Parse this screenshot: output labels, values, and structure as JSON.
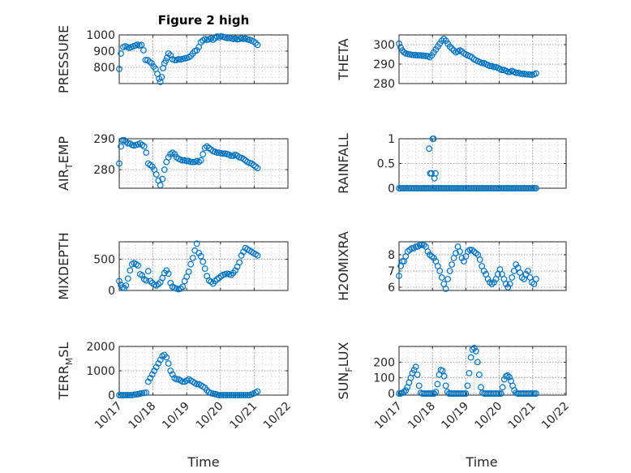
{
  "figure": {
    "title": "Figure 2 high",
    "xlabel": "Time",
    "date_ticks": [
      "10/17",
      "10/18",
      "10/19",
      "10/20",
      "10/21",
      "10/22"
    ]
  },
  "colors": {
    "marker": "#0072BD",
    "axes": "#262626",
    "grid": "#b0b0b0"
  },
  "chart_data": [
    {
      "type": "scatter",
      "ylabel": "PRESSURE",
      "xlim": [
        "10/17",
        "10/22"
      ],
      "ylim": [
        700,
        1000
      ],
      "yticks": [
        800,
        900,
        1000
      ],
      "grid": true,
      "x": [
        0.0,
        0.05,
        0.12,
        0.18,
        0.24,
        0.3,
        0.36,
        0.42,
        0.48,
        0.54,
        0.6,
        0.66,
        0.72,
        0.78,
        0.84,
        0.9,
        0.96,
        1.02,
        1.08,
        1.13,
        1.18,
        1.22,
        1.26,
        1.3,
        1.34,
        1.38,
        1.42,
        1.46,
        1.52,
        1.58,
        1.64,
        1.7,
        1.76,
        1.82,
        1.88,
        1.94,
        2.0,
        2.06,
        2.12,
        2.18,
        2.24,
        2.3,
        2.36,
        2.42,
        2.48,
        2.54,
        2.6,
        2.66,
        2.72,
        2.78,
        2.84,
        2.9,
        2.96,
        3.02,
        3.08,
        3.14,
        3.2,
        3.26,
        3.32,
        3.38,
        3.44,
        3.5,
        3.56,
        3.62,
        3.68,
        3.74,
        3.8,
        3.86,
        3.92,
        3.98,
        4.04,
        4.1
      ],
      "y": [
        790,
        885,
        925,
        930,
        925,
        920,
        925,
        930,
        935,
        940,
        935,
        938,
        905,
        845,
        845,
        835,
        825,
        805,
        790,
        760,
        730,
        710,
        740,
        795,
        825,
        840,
        860,
        885,
        875,
        850,
        845,
        845,
        850,
        848,
        852,
        855,
        858,
        862,
        870,
        885,
        900,
        905,
        925,
        955,
        965,
        975,
        970,
        972,
        978,
        970,
        980,
        990,
        985,
        992,
        988,
        985,
        980,
        982,
        978,
        975,
        978,
        972,
        975,
        980,
        975,
        978,
        972,
        970,
        965,
        960,
        950,
        938
      ]
    },
    {
      "type": "scatter",
      "ylabel": "THETA",
      "xlim": [
        "10/17",
        "10/22"
      ],
      "ylim": [
        280,
        305
      ],
      "yticks": [
        280,
        290,
        300
      ],
      "grid": true,
      "x": [
        0.0,
        0.05,
        0.1,
        0.15,
        0.2,
        0.26,
        0.32,
        0.38,
        0.44,
        0.5,
        0.56,
        0.62,
        0.68,
        0.74,
        0.8,
        0.86,
        0.92,
        0.98,
        1.04,
        1.1,
        1.16,
        1.22,
        1.28,
        1.34,
        1.4,
        1.46,
        1.52,
        1.58,
        1.64,
        1.7,
        1.76,
        1.82,
        1.88,
        1.94,
        2.0,
        2.06,
        2.12,
        2.18,
        2.24,
        2.3,
        2.36,
        2.42,
        2.48,
        2.54,
        2.6,
        2.66,
        2.72,
        2.78,
        2.84,
        2.9,
        2.96,
        3.02,
        3.08,
        3.14,
        3.2,
        3.26,
        3.32,
        3.38,
        3.44,
        3.5,
        3.56,
        3.62,
        3.68,
        3.74,
        3.8,
        3.86,
        3.92,
        3.98,
        4.04,
        4.1
      ],
      "y": [
        300.5,
        298.5,
        297,
        296,
        295.5,
        295.2,
        295,
        294.8,
        294.7,
        294.6,
        294.5,
        294.5,
        294.4,
        294.3,
        294.2,
        294,
        293.5,
        294.5,
        296,
        297.5,
        299,
        300.5,
        302,
        303,
        302,
        300.5,
        299,
        298,
        297,
        296,
        296.5,
        297,
        296.5,
        295.5,
        295,
        294.5,
        294,
        293.5,
        292.5,
        292,
        291.5,
        291,
        290.5,
        290.5,
        290,
        289.5,
        289,
        289,
        288.5,
        288.5,
        288,
        287.5,
        287,
        287,
        286.5,
        286,
        286,
        286.5,
        286,
        285.5,
        285.5,
        285.2,
        285,
        285,
        284.8,
        284.7,
        284.6,
        284.5,
        284.8,
        285.2
      ]
    },
    {
      "type": "scatter",
      "ylabel": "AIR_TEMP",
      "xlim": [
        "10/17",
        "10/22"
      ],
      "ylim": [
        274,
        290
      ],
      "yticks": [
        280,
        290
      ],
      "grid": true,
      "x": [
        0.0,
        0.05,
        0.1,
        0.15,
        0.2,
        0.26,
        0.32,
        0.38,
        0.44,
        0.5,
        0.56,
        0.62,
        0.68,
        0.74,
        0.8,
        0.86,
        0.92,
        0.98,
        1.04,
        1.1,
        1.16,
        1.22,
        1.28,
        1.34,
        1.4,
        1.46,
        1.52,
        1.58,
        1.64,
        1.7,
        1.76,
        1.82,
        1.88,
        1.94,
        2.0,
        2.06,
        2.12,
        2.18,
        2.24,
        2.3,
        2.36,
        2.42,
        2.48,
        2.54,
        2.6,
        2.66,
        2.72,
        2.78,
        2.84,
        2.9,
        2.96,
        3.02,
        3.08,
        3.14,
        3.2,
        3.26,
        3.32,
        3.38,
        3.44,
        3.5,
        3.56,
        3.62,
        3.68,
        3.74,
        3.8,
        3.86,
        3.92,
        3.98,
        4.04,
        4.1
      ],
      "y": [
        282,
        287.5,
        289.5,
        289.5,
        289,
        288.5,
        288.5,
        288,
        287.8,
        288,
        288.2,
        288.5,
        288,
        287.5,
        285.5,
        282,
        281.5,
        281,
        280,
        278.5,
        276.5,
        275,
        277,
        280,
        282.5,
        284,
        285,
        285.5,
        285,
        284,
        283.5,
        283.2,
        283,
        283,
        282.8,
        282.8,
        282.5,
        282.5,
        282.5,
        282.8,
        282.5,
        283,
        285,
        287,
        287.5,
        287,
        286.5,
        286,
        285.8,
        285.5,
        285.5,
        285.3,
        285.2,
        285.2,
        285,
        284.8,
        284.5,
        284.5,
        284.8,
        284.5,
        284,
        283.8,
        283.5,
        283,
        282.5,
        282.2,
        282,
        281.5,
        281,
        280.5
      ]
    },
    {
      "type": "scatter",
      "ylabel": "RAINFALL",
      "xlim": [
        "10/17",
        "10/22"
      ],
      "ylim": [
        0,
        1
      ],
      "yticks": [
        0,
        0.5,
        1
      ],
      "grid": true,
      "x": [
        0.0,
        0.05,
        0.1,
        0.15,
        0.2,
        0.25,
        0.3,
        0.35,
        0.4,
        0.45,
        0.5,
        0.55,
        0.6,
        0.65,
        0.7,
        0.75,
        0.8,
        0.85,
        0.9,
        0.95,
        1.0,
        1.05,
        1.1,
        1.15,
        1.2,
        1.25,
        1.3,
        1.35,
        1.4,
        1.45,
        1.5,
        1.55,
        1.6,
        1.65,
        1.7,
        1.75,
        1.8,
        1.85,
        1.9,
        1.95,
        2.0,
        2.05,
        2.1,
        2.15,
        2.2,
        2.25,
        2.3,
        2.35,
        2.4,
        2.45,
        2.5,
        2.55,
        2.6,
        2.65,
        2.7,
        2.75,
        2.8,
        2.85,
        2.9,
        2.95,
        3.0,
        3.05,
        3.1,
        3.15,
        3.2,
        3.25,
        3.3,
        3.35,
        3.4,
        3.45,
        3.5,
        3.55,
        3.6,
        3.65,
        3.7,
        3.75,
        3.8,
        3.85,
        3.9,
        3.95,
        4.0,
        4.05,
        4.1,
        0.9,
        0.93,
        0.97,
        1.01,
        1.03,
        1.06,
        1.09
      ],
      "y": [
        0,
        0,
        0,
        0,
        0,
        0,
        0,
        0,
        0,
        0,
        0,
        0,
        0,
        0,
        0,
        0,
        0,
        0,
        0,
        0,
        0,
        0,
        0,
        0,
        0,
        0,
        0,
        0,
        0,
        0,
        0,
        0,
        0,
        0,
        0,
        0,
        0,
        0,
        0,
        0,
        0,
        0,
        0,
        0,
        0,
        0,
        0,
        0,
        0,
        0,
        0,
        0,
        0,
        0,
        0,
        0,
        0,
        0,
        0,
        0,
        0,
        0,
        0,
        0,
        0,
        0,
        0,
        0,
        0,
        0,
        0,
        0,
        0,
        0,
        0,
        0,
        0,
        0,
        0,
        0,
        0,
        0,
        0,
        0.8,
        0.3,
        0.3,
        1,
        1,
        0.2,
        0.3
      ]
    },
    {
      "type": "scatter",
      "ylabel": "MIXDEPTH",
      "xlim": [
        "10/17",
        "10/22"
      ],
      "ylim": [
        0,
        780
      ],
      "yticks": [
        0,
        500
      ],
      "grid": true,
      "x": [
        0.0,
        0.05,
        0.1,
        0.15,
        0.2,
        0.26,
        0.32,
        0.38,
        0.44,
        0.5,
        0.56,
        0.62,
        0.68,
        0.74,
        0.8,
        0.86,
        0.92,
        0.98,
        1.04,
        1.1,
        1.16,
        1.22,
        1.28,
        1.34,
        1.4,
        1.46,
        1.52,
        1.58,
        1.64,
        1.7,
        1.76,
        1.82,
        1.88,
        1.94,
        2.0,
        2.06,
        2.12,
        2.18,
        2.24,
        2.3,
        2.36,
        2.42,
        2.48,
        2.54,
        2.6,
        2.66,
        2.72,
        2.78,
        2.84,
        2.9,
        2.96,
        3.02,
        3.08,
        3.14,
        3.2,
        3.26,
        3.32,
        3.38,
        3.44,
        3.5,
        3.56,
        3.62,
        3.68,
        3.74,
        3.8,
        3.86,
        3.92,
        3.98,
        4.04,
        4.1
      ],
      "y": [
        150,
        90,
        50,
        40,
        80,
        190,
        320,
        420,
        440,
        420,
        400,
        260,
        240,
        180,
        160,
        310,
        150,
        120,
        90,
        80,
        100,
        130,
        200,
        280,
        320,
        270,
        120,
        60,
        40,
        30,
        20,
        30,
        60,
        150,
        220,
        300,
        420,
        520,
        640,
        750,
        600,
        550,
        460,
        350,
        230,
        160,
        140,
        110,
        150,
        180,
        200,
        230,
        250,
        260,
        270,
        260,
        250,
        280,
        320,
        380,
        450,
        560,
        620,
        680,
        660,
        640,
        620,
        600,
        580,
        560
      ]
    },
    {
      "type": "scatter",
      "ylabel": "H2OMIXRA",
      "xlim": [
        "10/17",
        "10/22"
      ],
      "ylim": [
        5.8,
        8.8
      ],
      "yticks": [
        6,
        7,
        8
      ],
      "grid": true,
      "x": [
        0.0,
        0.05,
        0.1,
        0.15,
        0.2,
        0.26,
        0.32,
        0.38,
        0.44,
        0.5,
        0.56,
        0.62,
        0.68,
        0.74,
        0.8,
        0.86,
        0.92,
        0.98,
        1.04,
        1.1,
        1.16,
        1.22,
        1.28,
        1.34,
        1.4,
        1.46,
        1.52,
        1.58,
        1.64,
        1.7,
        1.76,
        1.82,
        1.88,
        1.94,
        2.0,
        2.06,
        2.12,
        2.18,
        2.24,
        2.3,
        2.36,
        2.42,
        2.48,
        2.54,
        2.6,
        2.66,
        2.72,
        2.78,
        2.84,
        2.9,
        2.96,
        3.02,
        3.08,
        3.14,
        3.2,
        3.26,
        3.32,
        3.38,
        3.44,
        3.5,
        3.56,
        3.62,
        3.68,
        3.74,
        3.8,
        3.86,
        3.92,
        3.98,
        4.04,
        4.1
      ],
      "y": [
        6.7,
        7.3,
        7.6,
        7.6,
        7.9,
        8.2,
        8.3,
        8.4,
        8.4,
        8.5,
        8.5,
        8.6,
        8.6,
        8.6,
        8.5,
        8.2,
        8.0,
        7.9,
        7.8,
        7.6,
        7.3,
        7.0,
        6.6,
        6.2,
        5.9,
        6.5,
        7.0,
        7.4,
        7.8,
        8.1,
        8.5,
        8.2,
        7.8,
        7.6,
        7.9,
        8.2,
        8.3,
        8.3,
        8.2,
        8.1,
        8.0,
        7.7,
        7.3,
        7.0,
        6.8,
        6.5,
        6.3,
        6.2,
        6.3,
        6.5,
        6.8,
        7.1,
        6.8,
        6.5,
        6.2,
        6.0,
        6.2,
        6.6,
        7.0,
        7.4,
        7.2,
        6.9,
        6.6,
        6.5,
        6.8,
        7.0,
        6.6,
        6.3,
        6.2,
        6.5
      ]
    },
    {
      "type": "scatter",
      "ylabel": "TERR_MSL",
      "xlim": [
        "10/17",
        "10/22"
      ],
      "ylim": [
        0,
        2000
      ],
      "yticks": [
        0,
        1000,
        2000
      ],
      "grid": true,
      "x": [
        0.0,
        0.05,
        0.1,
        0.15,
        0.2,
        0.26,
        0.32,
        0.38,
        0.44,
        0.5,
        0.56,
        0.62,
        0.68,
        0.74,
        0.8,
        0.86,
        0.92,
        0.98,
        1.04,
        1.1,
        1.16,
        1.22,
        1.28,
        1.34,
        1.4,
        1.46,
        1.52,
        1.58,
        1.64,
        1.7,
        1.76,
        1.82,
        1.88,
        1.94,
        2.0,
        2.06,
        2.12,
        2.18,
        2.24,
        2.3,
        2.36,
        2.42,
        2.48,
        2.54,
        2.6,
        2.66,
        2.72,
        2.78,
        2.84,
        2.9,
        2.96,
        3.02,
        3.08,
        3.14,
        3.2,
        3.26,
        3.32,
        3.38,
        3.44,
        3.5,
        3.56,
        3.62,
        3.68,
        3.74,
        3.8,
        3.86,
        3.92,
        3.98,
        4.04,
        4.1
      ],
      "y": [
        0,
        0,
        0,
        0,
        0,
        0,
        0,
        0,
        20,
        30,
        40,
        60,
        80,
        90,
        100,
        550,
        700,
        850,
        1000,
        1150,
        1300,
        1450,
        1600,
        1650,
        1550,
        1300,
        1000,
        850,
        700,
        650,
        650,
        600,
        550,
        550,
        600,
        650,
        600,
        550,
        500,
        450,
        450,
        400,
        350,
        300,
        200,
        120,
        80,
        60,
        40,
        20,
        0,
        0,
        0,
        0,
        0,
        0,
        0,
        0,
        0,
        0,
        0,
        0,
        0,
        0,
        0,
        0,
        30,
        60,
        100,
        150
      ]
    },
    {
      "type": "scatter",
      "ylabel": "SUN_FLUX",
      "xlim": [
        "10/17",
        "10/22"
      ],
      "ylim": [
        -10,
        300
      ],
      "yticks": [
        0,
        100,
        200
      ],
      "grid": true,
      "x": [
        0.0,
        0.05,
        0.1,
        0.15,
        0.2,
        0.25,
        0.3,
        0.35,
        0.4,
        0.45,
        0.5,
        0.55,
        0.6,
        0.65,
        0.7,
        0.75,
        0.8,
        0.85,
        0.9,
        0.95,
        1.0,
        1.05,
        1.1,
        1.15,
        1.2,
        1.25,
        1.3,
        1.35,
        1.4,
        1.45,
        1.5,
        1.55,
        1.6,
        1.65,
        1.7,
        1.75,
        1.8,
        1.85,
        1.9,
        1.95,
        2.0,
        2.05,
        2.1,
        2.15,
        2.2,
        2.25,
        2.3,
        2.35,
        2.4,
        2.45,
        2.5,
        2.55,
        2.6,
        2.65,
        2.7,
        2.75,
        2.8,
        2.85,
        2.9,
        2.95,
        3.0,
        3.05,
        3.1,
        3.15,
        3.2,
        3.25,
        3.3,
        3.35,
        3.4,
        3.45,
        3.5,
        3.55,
        3.6,
        3.65,
        3.7,
        3.75,
        3.8,
        3.85,
        3.9,
        3.95,
        4.0,
        4.05,
        4.1
      ],
      "y": [
        0,
        0,
        5,
        10,
        20,
        40,
        70,
        100,
        130,
        150,
        170,
        120,
        50,
        5,
        0,
        0,
        0,
        0,
        0,
        0,
        0,
        0,
        10,
        60,
        120,
        150,
        145,
        110,
        50,
        10,
        0,
        0,
        0,
        0,
        0,
        0,
        0,
        0,
        0,
        0,
        0,
        50,
        130,
        230,
        280,
        290,
        270,
        200,
        120,
        40,
        5,
        0,
        0,
        0,
        0,
        0,
        0,
        0,
        0,
        0,
        0,
        0,
        40,
        90,
        110,
        115,
        105,
        80,
        50,
        20,
        5,
        0,
        0,
        0,
        0,
        0,
        0,
        0,
        0,
        0,
        0,
        0,
        0
      ]
    }
  ]
}
